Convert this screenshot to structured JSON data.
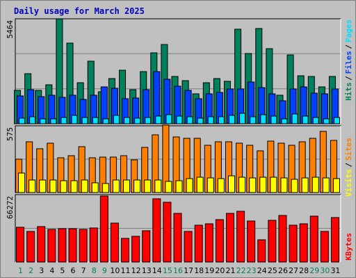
{
  "title": "Daily usage for March 2025",
  "panels": {
    "top": {
      "ymax_label": "5464",
      "legend": [
        "Pages",
        "Files",
        "Hits"
      ],
      "separator": "/"
    },
    "mid": {
      "ymax_label": "575",
      "legend": [
        "Sites",
        "Visits"
      ],
      "separator": "/"
    },
    "bot": {
      "ymax_label": "66272",
      "legend": [
        "KBytes"
      ]
    }
  },
  "colors": {
    "hits": "#00805c",
    "files": "#0040ff",
    "pages": "#00e0ff",
    "visits": "#ff8000",
    "sites": "#ffff00",
    "kbytes": "#ff0000",
    "weekday": "#000000",
    "weekend": "#00805c",
    "panel_bg": "#c0c0c0",
    "frame_bg": "#c0c0c0",
    "title": "#0000c0"
  },
  "chart_data": {
    "type": "bar",
    "categories": [
      "1",
      "2",
      "3",
      "4",
      "5",
      "6",
      "7",
      "8",
      "9",
      "10",
      "11",
      "12",
      "13",
      "14",
      "15",
      "16",
      "17",
      "18",
      "19",
      "20",
      "21",
      "22",
      "23",
      "24",
      "25",
      "26",
      "27",
      "28",
      "29",
      "30",
      "31"
    ],
    "weekend_days": [
      1,
      2,
      8,
      9,
      15,
      16,
      22,
      23,
      29,
      30
    ],
    "series": [
      {
        "name": "Hits",
        "panel": "top",
        "ylim": [
          0,
          5464
        ],
        "values": [
          1750,
          2590,
          1750,
          2010,
          5464,
          4210,
          2130,
          3260,
          1650,
          2340,
          2800,
          1770,
          2700,
          3680,
          4140,
          2450,
          2240,
          1560,
          2150,
          2350,
          2220,
          4930,
          3670,
          4950,
          3910,
          1500,
          3580,
          2500,
          2450,
          1900,
          2450
        ]
      },
      {
        "name": "Files",
        "panel": "top",
        "ylim": [
          0,
          5464
        ],
        "values": [
          1430,
          1790,
          1420,
          1500,
          1390,
          1490,
          1280,
          1500,
          1900,
          1830,
          1320,
          1350,
          1790,
          2700,
          2300,
          1950,
          1720,
          1300,
          1570,
          1630,
          1800,
          1820,
          2170,
          1890,
          1550,
          1200,
          1820,
          1900,
          1580,
          1550,
          1800
        ]
      },
      {
        "name": "Pages",
        "panel": "top",
        "ylim": [
          0,
          5464
        ],
        "values": [
          280,
          350,
          240,
          260,
          310,
          420,
          330,
          320,
          270,
          440,
          320,
          280,
          330,
          390,
          470,
          380,
          350,
          280,
          370,
          370,
          430,
          540,
          360,
          460,
          410,
          240,
          500,
          400,
          330,
          270,
          330
        ]
      },
      {
        "name": "Visits",
        "panel": "mid",
        "ylim": [
          0,
          575
        ],
        "values": [
          285,
          435,
          375,
          425,
          300,
          320,
          395,
          300,
          305,
          305,
          315,
          280,
          390,
          495,
          580,
          480,
          470,
          470,
          405,
          440,
          435,
          425,
          410,
          360,
          445,
          425,
          410,
          440,
          470,
          525,
          450
        ]
      },
      {
        "name": "Sites",
        "panel": "mid",
        "ylim": [
          0,
          575
        ],
        "values": [
          165,
          110,
          110,
          105,
          100,
          100,
          105,
          85,
          80,
          105,
          110,
          110,
          105,
          110,
          95,
          100,
          120,
          130,
          125,
          120,
          145,
          130,
          125,
          130,
          130,
          125,
          115,
          125,
          130,
          125,
          120
        ]
      },
      {
        "name": "KBytes",
        "panel": "bot",
        "ylim": [
          0,
          66272
        ],
        "values": [
          34000,
          30000,
          35000,
          32000,
          33000,
          33000,
          32000,
          33500,
          65000,
          38000,
          23000,
          25000,
          31000,
          62000,
          59000,
          48000,
          30000,
          36000,
          37500,
          42000,
          48000,
          50000,
          40000,
          22000,
          41000,
          46000,
          36000,
          37500,
          45000,
          30000,
          44000
        ]
      }
    ]
  }
}
